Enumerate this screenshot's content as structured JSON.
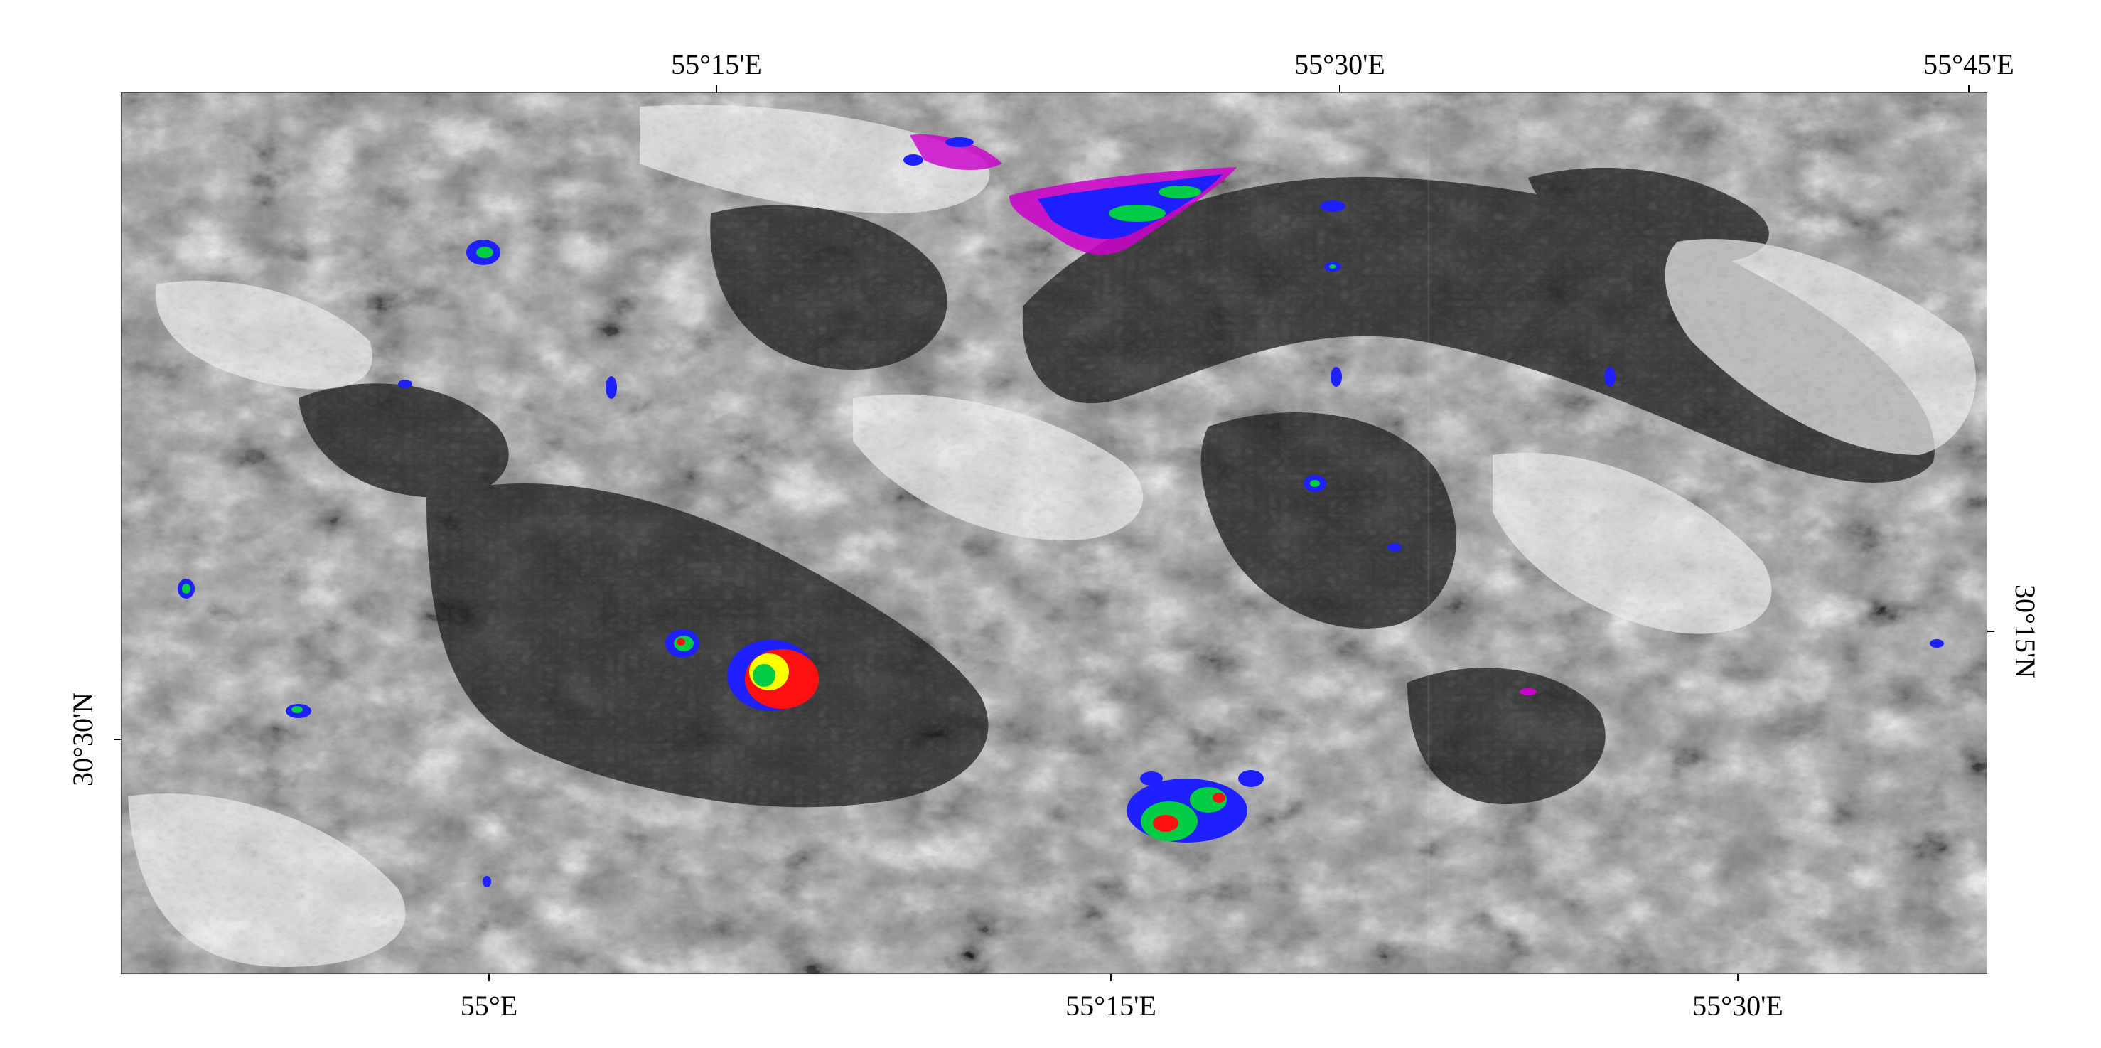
{
  "map": {
    "type": "satellite-image-overlay",
    "base_layer": "grayscale",
    "anomaly_colors": [
      "#ff0000",
      "#ffff00",
      "#00cc44",
      "#0000ff",
      "#cc00cc"
    ],
    "top_axis": {
      "labels": [
        "55°15'E",
        "55°30'E",
        "55°45'E"
      ]
    },
    "bottom_axis": {
      "labels": [
        "55°E",
        "55°15'E",
        "55°30'E"
      ]
    },
    "left_axis": {
      "labels": [
        "30°30'N"
      ]
    },
    "right_axis": {
      "labels": [
        "30°15'N"
      ]
    }
  }
}
